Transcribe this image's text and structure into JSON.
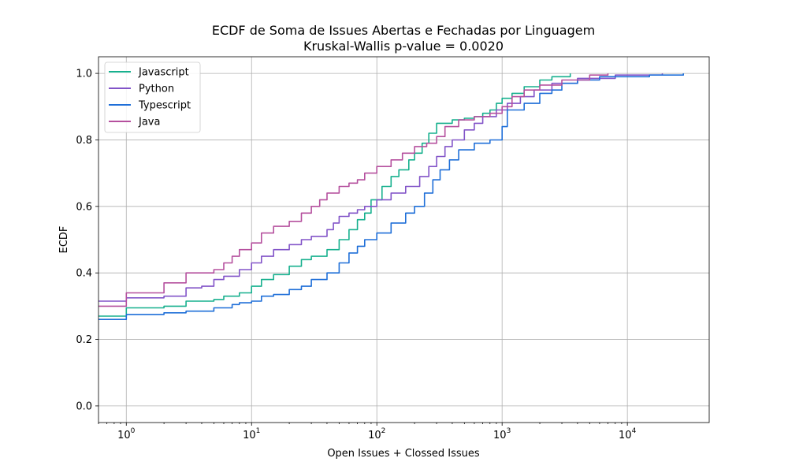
{
  "chart_data": {
    "type": "line",
    "title": "ECDF de Soma de Issues Abertas e Fechadas por Linguagem",
    "subtitle": "Kruskal-Wallis p-value = 0.0020",
    "xlabel": "Open Issues + Clossed Issues",
    "ylabel": "ECDF",
    "x_scale": "log",
    "xlim": [
      0.6,
      45000
    ],
    "ylim": [
      -0.05,
      1.05
    ],
    "grid": true,
    "legend_position": "top-left",
    "x_ticks": [
      {
        "value": 1,
        "base": "10",
        "exp": "0"
      },
      {
        "value": 10,
        "base": "10",
        "exp": "1"
      },
      {
        "value": 100,
        "base": "10",
        "exp": "2"
      },
      {
        "value": 1000,
        "base": "10",
        "exp": "3"
      },
      {
        "value": 10000,
        "base": "10",
        "exp": "4"
      }
    ],
    "y_ticks": [
      {
        "value": 0.0,
        "label": "0.0"
      },
      {
        "value": 0.2,
        "label": "0.2"
      },
      {
        "value": 0.4,
        "label": "0.4"
      },
      {
        "value": 0.6,
        "label": "0.6"
      },
      {
        "value": 0.8,
        "label": "0.8"
      },
      {
        "value": 1.0,
        "label": "1.0"
      }
    ],
    "series": [
      {
        "name": "Javascript",
        "color": "#17b08e",
        "points": [
          [
            0.6,
            0.27
          ],
          [
            1,
            0.27
          ],
          [
            1,
            0.295
          ],
          [
            2,
            0.3
          ],
          [
            3,
            0.305
          ],
          [
            3,
            0.315
          ],
          [
            5,
            0.32
          ],
          [
            6,
            0.33
          ],
          [
            8,
            0.34
          ],
          [
            10,
            0.36
          ],
          [
            12,
            0.38
          ],
          [
            15,
            0.395
          ],
          [
            20,
            0.42
          ],
          [
            25,
            0.44
          ],
          [
            30,
            0.45
          ],
          [
            40,
            0.47
          ],
          [
            50,
            0.5
          ],
          [
            60,
            0.53
          ],
          [
            70,
            0.56
          ],
          [
            80,
            0.58
          ],
          [
            90,
            0.62
          ],
          [
            110,
            0.66
          ],
          [
            130,
            0.69
          ],
          [
            150,
            0.71
          ],
          [
            180,
            0.74
          ],
          [
            200,
            0.76
          ],
          [
            230,
            0.79
          ],
          [
            260,
            0.82
          ],
          [
            300,
            0.85
          ],
          [
            400,
            0.86
          ],
          [
            500,
            0.865
          ],
          [
            600,
            0.87
          ],
          [
            700,
            0.88
          ],
          [
            800,
            0.89
          ],
          [
            900,
            0.91
          ],
          [
            1000,
            0.925
          ],
          [
            1200,
            0.94
          ],
          [
            1500,
            0.96
          ],
          [
            2000,
            0.98
          ],
          [
            2500,
            0.99
          ],
          [
            3500,
            1.0
          ]
        ]
      },
      {
        "name": "Python",
        "color": "#8254c8",
        "points": [
          [
            0.6,
            0.315
          ],
          [
            1,
            0.315
          ],
          [
            1,
            0.325
          ],
          [
            2,
            0.33
          ],
          [
            3,
            0.34
          ],
          [
            3,
            0.355
          ],
          [
            4,
            0.36
          ],
          [
            5,
            0.38
          ],
          [
            6,
            0.39
          ],
          [
            8,
            0.41
          ],
          [
            10,
            0.43
          ],
          [
            12,
            0.45
          ],
          [
            15,
            0.47
          ],
          [
            20,
            0.485
          ],
          [
            25,
            0.5
          ],
          [
            30,
            0.51
          ],
          [
            40,
            0.53
          ],
          [
            45,
            0.55
          ],
          [
            50,
            0.57
          ],
          [
            60,
            0.58
          ],
          [
            70,
            0.59
          ],
          [
            80,
            0.6
          ],
          [
            100,
            0.62
          ],
          [
            130,
            0.64
          ],
          [
            170,
            0.66
          ],
          [
            220,
            0.69
          ],
          [
            260,
            0.72
          ],
          [
            300,
            0.75
          ],
          [
            350,
            0.78
          ],
          [
            400,
            0.8
          ],
          [
            500,
            0.83
          ],
          [
            600,
            0.85
          ],
          [
            700,
            0.87
          ],
          [
            900,
            0.89
          ],
          [
            1100,
            0.91
          ],
          [
            1400,
            0.93
          ],
          [
            1800,
            0.95
          ],
          [
            2500,
            0.97
          ],
          [
            4000,
            0.985
          ],
          [
            8000,
            0.995
          ],
          [
            19000,
            1.0
          ]
        ]
      },
      {
        "name": "Typescript",
        "color": "#1f6fd8",
        "points": [
          [
            0.6,
            0.26
          ],
          [
            1,
            0.26
          ],
          [
            1,
            0.275
          ],
          [
            2,
            0.28
          ],
          [
            3,
            0.285
          ],
          [
            5,
            0.295
          ],
          [
            7,
            0.305
          ],
          [
            8,
            0.31
          ],
          [
            10,
            0.315
          ],
          [
            12,
            0.33
          ],
          [
            15,
            0.335
          ],
          [
            20,
            0.35
          ],
          [
            25,
            0.36
          ],
          [
            30,
            0.38
          ],
          [
            40,
            0.4
          ],
          [
            50,
            0.43
          ],
          [
            60,
            0.46
          ],
          [
            70,
            0.48
          ],
          [
            80,
            0.5
          ],
          [
            100,
            0.52
          ],
          [
            130,
            0.55
          ],
          [
            170,
            0.58
          ],
          [
            200,
            0.6
          ],
          [
            240,
            0.64
          ],
          [
            280,
            0.68
          ],
          [
            320,
            0.71
          ],
          [
            380,
            0.74
          ],
          [
            450,
            0.77
          ],
          [
            600,
            0.79
          ],
          [
            800,
            0.8
          ],
          [
            1000,
            0.84
          ],
          [
            1100,
            0.89
          ],
          [
            1500,
            0.91
          ],
          [
            2000,
            0.94
          ],
          [
            2500,
            0.95
          ],
          [
            3000,
            0.97
          ],
          [
            4000,
            0.98
          ],
          [
            6000,
            0.99
          ],
          [
            15000,
            0.995
          ],
          [
            28000,
            1.0
          ]
        ]
      },
      {
        "name": "Java",
        "color": "#b5509e",
        "points": [
          [
            0.6,
            0.3
          ],
          [
            1,
            0.3
          ],
          [
            1,
            0.34
          ],
          [
            2,
            0.345
          ],
          [
            2,
            0.37
          ],
          [
            3,
            0.37
          ],
          [
            3,
            0.4
          ],
          [
            5,
            0.41
          ],
          [
            6,
            0.43
          ],
          [
            7,
            0.45
          ],
          [
            8,
            0.47
          ],
          [
            10,
            0.49
          ],
          [
            12,
            0.52
          ],
          [
            15,
            0.54
          ],
          [
            20,
            0.555
          ],
          [
            25,
            0.58
          ],
          [
            30,
            0.6
          ],
          [
            35,
            0.62
          ],
          [
            40,
            0.64
          ],
          [
            50,
            0.66
          ],
          [
            60,
            0.67
          ],
          [
            70,
            0.68
          ],
          [
            80,
            0.7
          ],
          [
            100,
            0.72
          ],
          [
            130,
            0.74
          ],
          [
            160,
            0.76
          ],
          [
            200,
            0.78
          ],
          [
            250,
            0.79
          ],
          [
            300,
            0.81
          ],
          [
            350,
            0.84
          ],
          [
            450,
            0.86
          ],
          [
            600,
            0.87
          ],
          [
            800,
            0.88
          ],
          [
            1000,
            0.9
          ],
          [
            1200,
            0.93
          ],
          [
            1500,
            0.95
          ],
          [
            2000,
            0.965
          ],
          [
            3000,
            0.98
          ],
          [
            5000,
            0.995
          ],
          [
            7000,
            1.0
          ]
        ]
      }
    ]
  }
}
